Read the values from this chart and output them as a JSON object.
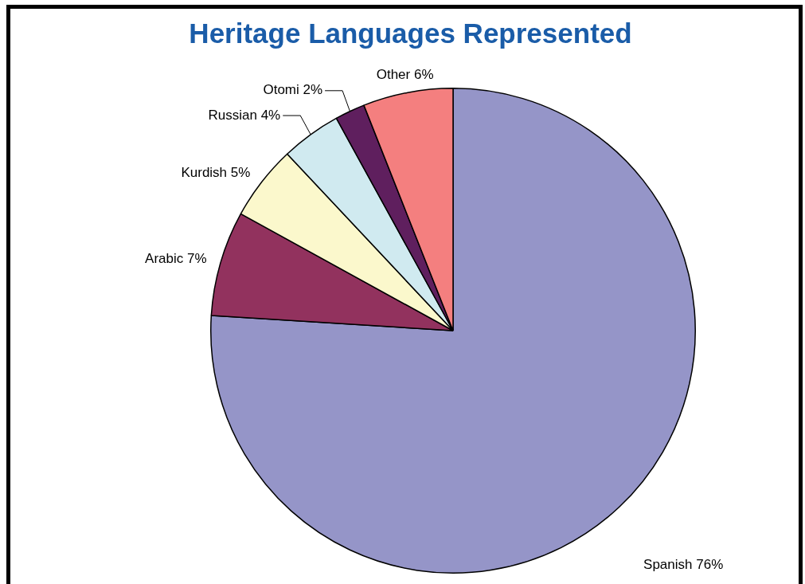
{
  "chart_data": {
    "type": "pie",
    "title": "Heritage Languages Represented",
    "categories": [
      "Spanish",
      "Arabic",
      "Kurdish",
      "Russian",
      "Otomi",
      "Other"
    ],
    "values": [
      76,
      7,
      5,
      4,
      2,
      6
    ],
    "value_labels": [
      "76%",
      "7%",
      "5%",
      "4%",
      "2%",
      "6%"
    ],
    "colors": [
      "#9595c8",
      "#92325e",
      "#fbf8cc",
      "#d0eaf0",
      "#5f1f5e",
      "#f47f7f"
    ],
    "legend": false
  }
}
